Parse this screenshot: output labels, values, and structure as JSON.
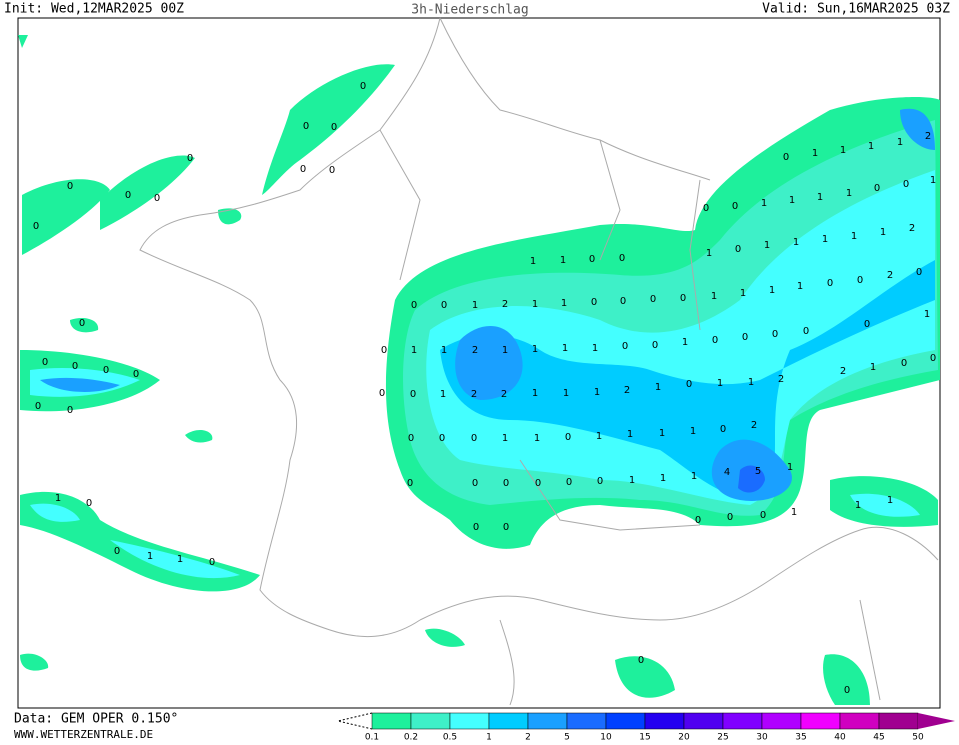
{
  "header": {
    "init": "Init: Wed,12MAR2025 00Z",
    "title": "3h-Niederschlag",
    "valid": "Valid: Sun,16MAR2025 03Z"
  },
  "footer": {
    "data": "Data: GEM OPER 0.150°",
    "site": "WWW.WETTERZENTRALE.DE"
  },
  "legend": {
    "ticks": [
      0.1,
      0.2,
      0.5,
      1,
      2,
      5,
      10,
      15,
      20,
      25,
      30,
      35,
      40,
      45,
      50
    ],
    "colors": [
      "#1ef09c",
      "#3ef0c8",
      "#44ffff",
      "#00ccff",
      "#1aa0ff",
      "#1a6cff",
      "#0040ff",
      "#2400f0",
      "#5000f0",
      "#8000ff",
      "#b000ff",
      "#f000ff",
      "#d000c0",
      "#a00090"
    ]
  },
  "map_labels": [
    "0",
    "0",
    "0",
    "0",
    "0",
    "0",
    "0",
    "0",
    "0",
    "0",
    "0",
    "0",
    "0",
    "0",
    "0",
    "0",
    "0",
    "1",
    "1",
    "0",
    "0",
    "0",
    "0",
    "1",
    "2",
    "1",
    "1",
    "0",
    "0",
    "0",
    "0",
    "0",
    "1",
    "1",
    "2",
    "1",
    "1",
    "1",
    "1",
    "0",
    "0",
    "1",
    "0",
    "0",
    "0",
    "0",
    "0",
    "0",
    "1",
    "2",
    "2",
    "1",
    "1",
    "1",
    "2",
    "1",
    "0",
    "1",
    "1",
    "2",
    "0",
    "0",
    "0",
    "1",
    "1",
    "0",
    "1",
    "1",
    "1",
    "1",
    "0",
    "2",
    "0",
    "0",
    "0",
    "0",
    "0",
    "0",
    "1",
    "1",
    "1",
    "4",
    "5",
    "1",
    "0",
    "0",
    "0",
    "0",
    "0",
    "1",
    "1",
    "1",
    "1",
    "0",
    "0",
    "1",
    "1",
    "0",
    "0",
    "0",
    "0",
    "1",
    "1",
    "1",
    "1",
    "2",
    "0",
    "0",
    "1",
    "1",
    "1",
    "1",
    "0",
    "0",
    "1",
    "1",
    "0",
    "1",
    "1",
    "1",
    "1",
    "1",
    "2",
    "1",
    "1",
    "1",
    "1",
    "0",
    "0",
    "2",
    "0",
    "0",
    "1",
    "2",
    "1",
    "0",
    "0",
    "0"
  ]
}
